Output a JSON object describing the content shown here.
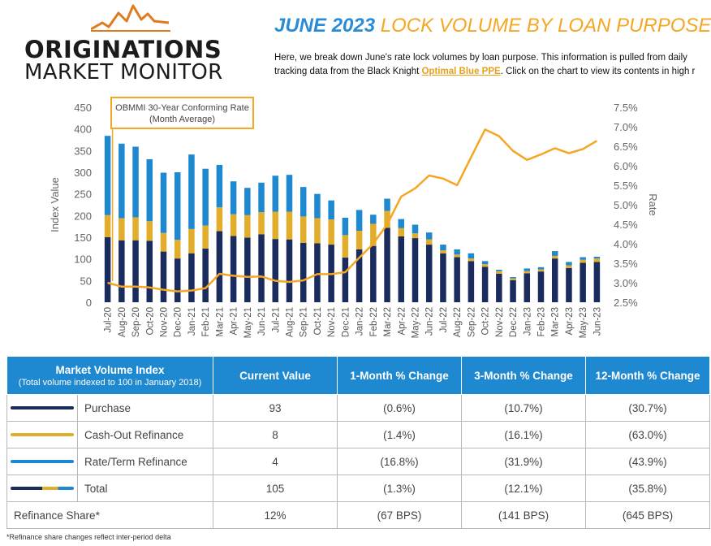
{
  "brand": {
    "line1": "ORIGINATIONS",
    "line2": "MARKET MONITOR"
  },
  "headline": {
    "bold": "JUNE 2023",
    "rest": "LOCK VOLUME BY LOAN PURPOSE"
  },
  "intro": {
    "line1": "Here, we break down June's rate lock volumes by loan purpose. This information is pulled from daily",
    "line2_pre": "tracking data from the Black Knight ",
    "link": "Optimal Blue PPE",
    "line2_post": ". Click on the chart to view its contents in high r"
  },
  "chart_data": {
    "type": "bar",
    "stacked": true,
    "categories": [
      "Jul-20",
      "Aug-20",
      "Sep-20",
      "Oct-20",
      "Nov-20",
      "Dec-20",
      "Jan-21",
      "Feb-21",
      "Mar-21",
      "Apr-21",
      "May-21",
      "Jun-21",
      "Jul-21",
      "Aug-21",
      "Sep-21",
      "Oct-21",
      "Nov-21",
      "Dec-21",
      "Jan-22",
      "Feb-22",
      "Mar-22",
      "Apr-22",
      "May-22",
      "Jun-22",
      "Jul-22",
      "Aug-22",
      "Sep-22",
      "Oct-22",
      "Nov-22",
      "Dec-22",
      "Jan-23",
      "Feb-23",
      "Mar-23",
      "Apr-23",
      "May-23",
      "Jun-23"
    ],
    "series": [
      {
        "name": "Purchase",
        "color": "#1a2b5e",
        "values": [
          150,
          143,
          143,
          142,
          117,
          101,
          113,
          124,
          164,
          153,
          149,
          157,
          146,
          145,
          137,
          136,
          133,
          103,
          122,
          130,
          172,
          152,
          148,
          133,
          113,
          104,
          95,
          82,
          66,
          51,
          67,
          71,
          101,
          79,
          91,
          93
        ]
      },
      {
        "name": "Cash-Out Refinance",
        "color": "#e3ad2c",
        "values": [
          51,
          51,
          53,
          45,
          43,
          43,
          56,
          53,
          55,
          50,
          52,
          51,
          63,
          64,
          61,
          58,
          58,
          52,
          43,
          51,
          39,
          19,
          11,
          12,
          7,
          6,
          6,
          6,
          6,
          4,
          5,
          5,
          6,
          6,
          7,
          8
        ]
      },
      {
        "name": "Rate/Term Refinance",
        "color": "#1e88d0",
        "values": [
          183,
          172,
          163,
          143,
          139,
          156,
          172,
          131,
          98,
          76,
          63,
          68,
          83,
          85,
          68,
          56,
          44,
          40,
          48,
          21,
          28,
          21,
          20,
          16,
          13,
          12,
          12,
          7,
          3,
          3,
          6,
          5,
          11,
          8,
          6,
          4
        ]
      }
    ],
    "line": {
      "name": "OBMMI 30-Year Conforming Rate (Month Average)",
      "color": "#f5a623",
      "axis": "right",
      "values": [
        3.0,
        2.9,
        2.9,
        2.88,
        2.82,
        2.78,
        2.8,
        2.86,
        3.23,
        3.18,
        3.15,
        3.16,
        3.05,
        3.02,
        3.06,
        3.22,
        3.22,
        3.27,
        3.64,
        4.0,
        4.5,
        5.21,
        5.42,
        5.75,
        5.67,
        5.5,
        6.22,
        6.93,
        6.76,
        6.38,
        6.15,
        6.29,
        6.45,
        6.32,
        6.43,
        6.64
      ]
    },
    "ylabel": "Index Value",
    "y2label": "Rate",
    "ylim": [
      0,
      450
    ],
    "yticks": [
      0,
      50,
      100,
      150,
      200,
      250,
      300,
      350,
      400,
      450
    ],
    "y2lim": [
      2.5,
      7.5
    ],
    "y2ticks": [
      "2.5%",
      "3.0%",
      "3.5%",
      "4.0%",
      "4.5%",
      "5.0%",
      "5.5%",
      "6.0%",
      "6.5%",
      "7.0%",
      "7.5%"
    ],
    "annotation": "OBMMI 30-Year Conforming Rate\n(Month Average)",
    "grid": false
  },
  "table": {
    "head": {
      "col0_title": "Market Volume Index",
      "col0_sub": "(Total volume indexed to 100 in January 2018)",
      "col1": "Current Value",
      "col2": "1-Month % Change",
      "col3": "3-Month % Change",
      "col4": "12-Month % Change"
    },
    "rows": [
      {
        "label": "Purchase",
        "swatch": "#1a2b5e",
        "current": "93",
        "m1": "(0.6%)",
        "m3": "(10.7%)",
        "m12": "(30.7%)"
      },
      {
        "label": "Cash-Out Refinance",
        "swatch": "#e3ad2c",
        "current": "8",
        "m1": "(1.4%)",
        "m3": "(16.1%)",
        "m12": "(63.0%)"
      },
      {
        "label": "Rate/Term Refinance",
        "swatch": "#1e88d0",
        "current": "4",
        "m1": "(16.8%)",
        "m3": "(31.9%)",
        "m12": "(43.9%)"
      },
      {
        "label": "Total",
        "swatch": "multi",
        "current": "105",
        "m1": "(1.3%)",
        "m3": "(12.1%)",
        "m12": "(35.8%)"
      }
    ],
    "share": {
      "label": "Refinance Share*",
      "current": "12%",
      "m1": "(67 BPS)",
      "m3": "(141 BPS)",
      "m12": "(645 BPS)"
    }
  },
  "footnote": "*Refinance share changes reflect inter-period delta"
}
